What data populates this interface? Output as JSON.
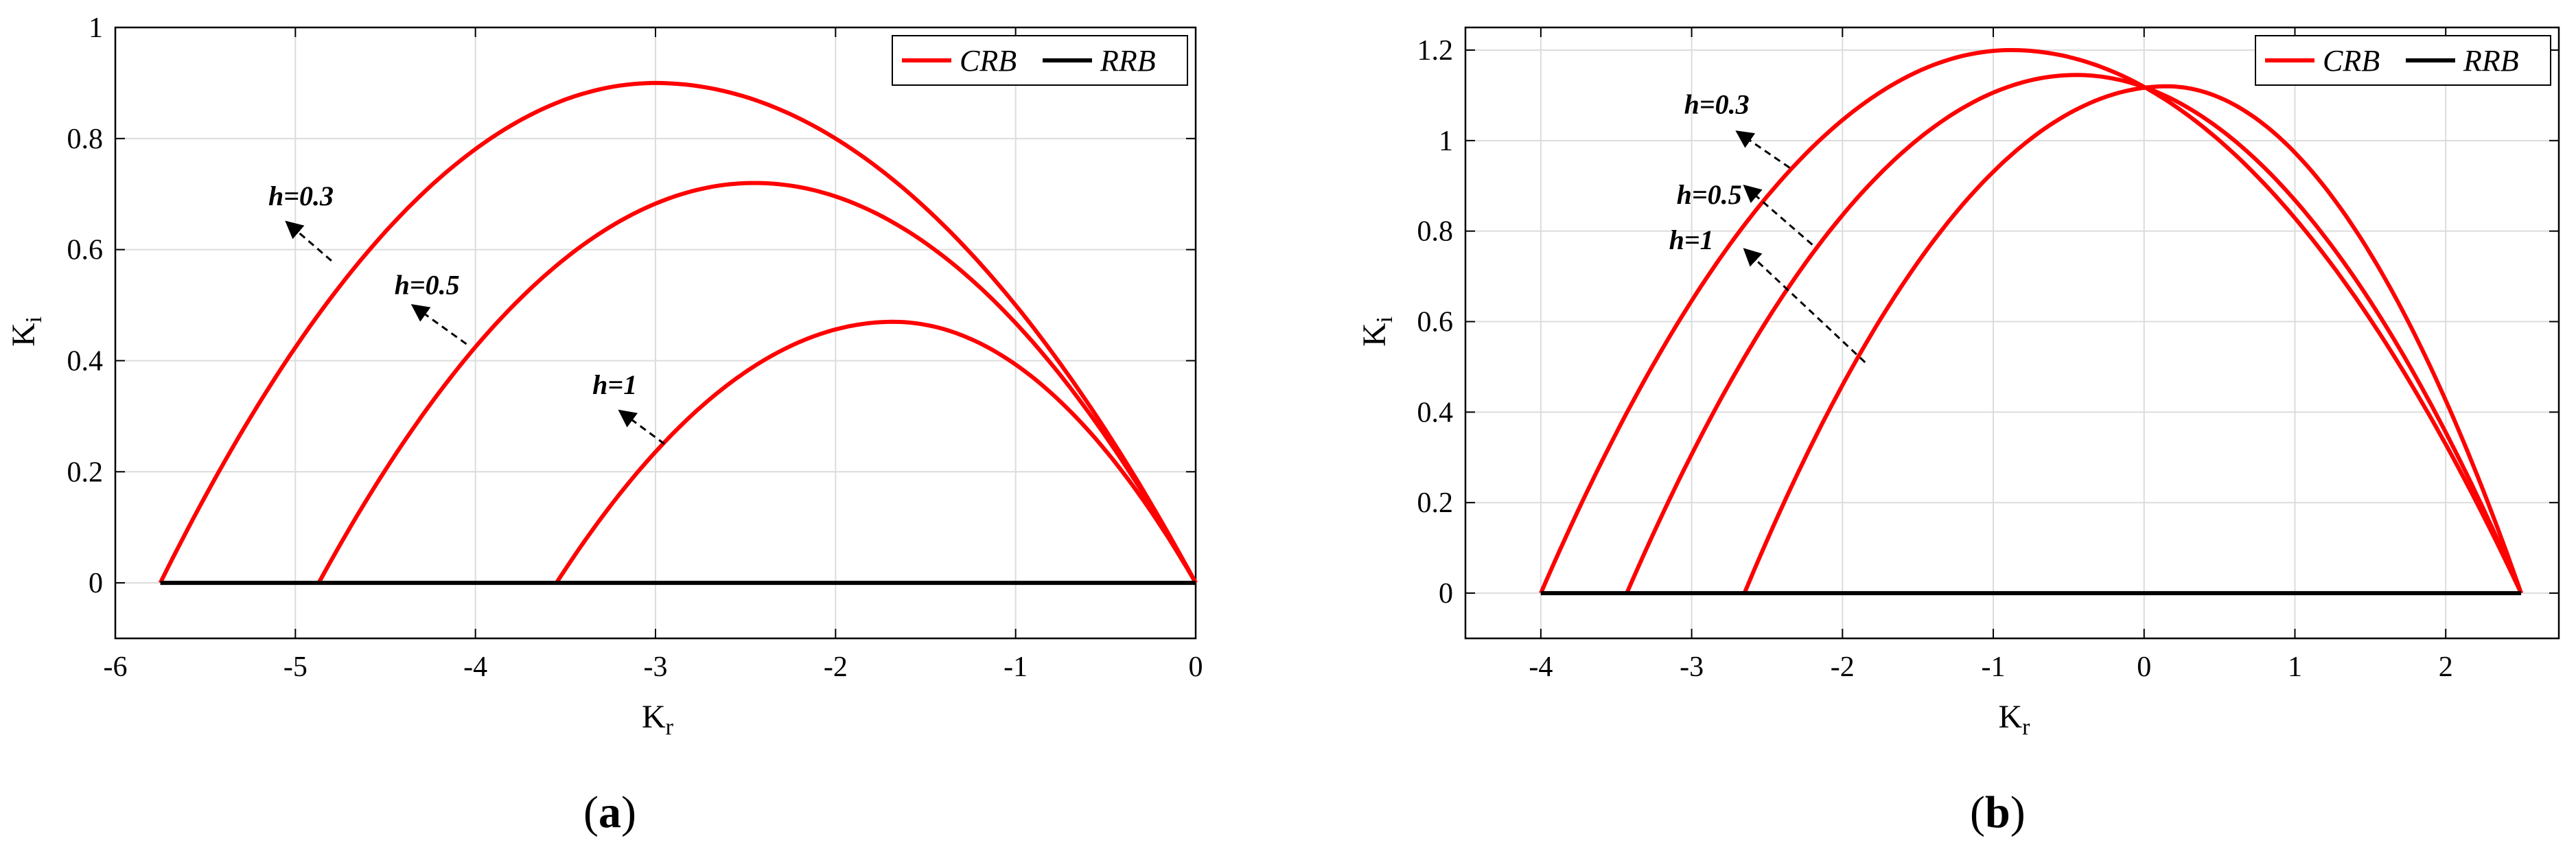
{
  "chart_data": [
    {
      "type": "line",
      "caption": "a",
      "xlabel": "K",
      "xlabel_sub": "r",
      "ylabel": "K",
      "ylabel_sub": "i",
      "xlim": [
        -6,
        0
      ],
      "ylim": [
        -0.1,
        1.0
      ],
      "xticks": [
        -6,
        -5,
        -4,
        -3,
        -2,
        -1,
        0
      ],
      "yticks": [
        0,
        0.2,
        0.4,
        0.6,
        0.8,
        1
      ],
      "ytick_labels": [
        "0",
        "0.2",
        "0.4",
        "0.6",
        "0.8",
        "1"
      ],
      "grid": true,
      "legend_position": "top-right",
      "legend": [
        {
          "name": "CRB",
          "color": "#ff0000"
        },
        {
          "name": "RRB",
          "color": "#000000"
        }
      ],
      "series": [
        {
          "label": "h=0.3",
          "color": "#ff0000",
          "x_start": -5.75,
          "x_end": 0,
          "peak_x": -3.0,
          "peak_y": 0.9
        },
        {
          "label": "h=0.5",
          "color": "#ff0000",
          "x_start": -4.87,
          "x_end": 0,
          "peak_x": -2.45,
          "peak_y": 0.72
        },
        {
          "label": "h=1",
          "color": "#ff0000",
          "x_start": -3.55,
          "x_end": 0,
          "peak_x": -1.68,
          "peak_y": 0.47
        }
      ],
      "baseline": {
        "name": "RRB",
        "color": "#000000",
        "x": [
          -5.75,
          0
        ],
        "y": [
          0,
          0
        ]
      },
      "annotations": [
        {
          "text": "h=0.3",
          "text_x": -5.15,
          "text_y": 0.68,
          "arrow_from": [
            -4.8,
            0.58
          ],
          "arrow_to": [
            -5.05,
            0.65
          ]
        },
        {
          "text": "h=0.5",
          "text_x": -4.45,
          "text_y": 0.52,
          "arrow_from": [
            -4.05,
            0.43
          ],
          "arrow_to": [
            -4.35,
            0.5
          ]
        },
        {
          "text": "h=1",
          "text_x": -3.35,
          "text_y": 0.34,
          "arrow_from": [
            -2.95,
            0.25
          ],
          "arrow_to": [
            -3.2,
            0.31
          ]
        }
      ]
    },
    {
      "type": "line",
      "caption": "b",
      "xlabel": "K",
      "xlabel_sub": "r",
      "ylabel": "K",
      "ylabel_sub": "i",
      "xlim": [
        -4.5,
        2.75
      ],
      "ylim": [
        -0.1,
        1.25
      ],
      "xticks": [
        -4,
        -3,
        -2,
        -1,
        0,
        1,
        2
      ],
      "yticks": [
        0,
        0.2,
        0.4,
        0.6,
        0.8,
        1,
        1.2
      ],
      "ytick_labels": [
        "0",
        "0.2",
        "0.4",
        "0.6",
        "0.8",
        "1",
        "1.2"
      ],
      "grid": true,
      "legend_position": "top-right",
      "legend": [
        {
          "name": "CRB",
          "color": "#ff0000"
        },
        {
          "name": "RRB",
          "color": "#000000"
        }
      ],
      "series": [
        {
          "label": "h=0.3",
          "color": "#ff0000",
          "x_start": -4.0,
          "x_end": 2.5,
          "peak_x": -0.88,
          "peak_y": 1.2
        },
        {
          "label": "h=0.5",
          "color": "#ff0000",
          "x_start": -3.43,
          "x_end": 2.5,
          "peak_x": -0.45,
          "peak_y": 1.145
        },
        {
          "label": "h=1",
          "color": "#ff0000",
          "x_start": -2.65,
          "x_end": 2.5,
          "peak_x": 0.15,
          "peak_y": 1.12
        }
      ],
      "baseline": {
        "name": "RRB",
        "color": "#000000",
        "x": [
          -4.0,
          2.5
        ],
        "y": [
          0,
          0
        ]
      },
      "annotations": [
        {
          "text": "h=0.3",
          "text_x": -3.05,
          "text_y": 1.06,
          "arrow_from": [
            -2.35,
            0.94
          ],
          "arrow_to": [
            -2.7,
            1.02
          ]
        },
        {
          "text": "h=0.5",
          "text_x": -3.1,
          "text_y": 0.86,
          "arrow_from": [
            -2.2,
            0.77
          ],
          "arrow_to": [
            -2.65,
            0.9
          ]
        },
        {
          "text": "h=1",
          "text_x": -3.15,
          "text_y": 0.76,
          "arrow_from": [
            -1.85,
            0.51
          ],
          "arrow_to": [
            -2.65,
            0.76
          ]
        }
      ]
    }
  ]
}
